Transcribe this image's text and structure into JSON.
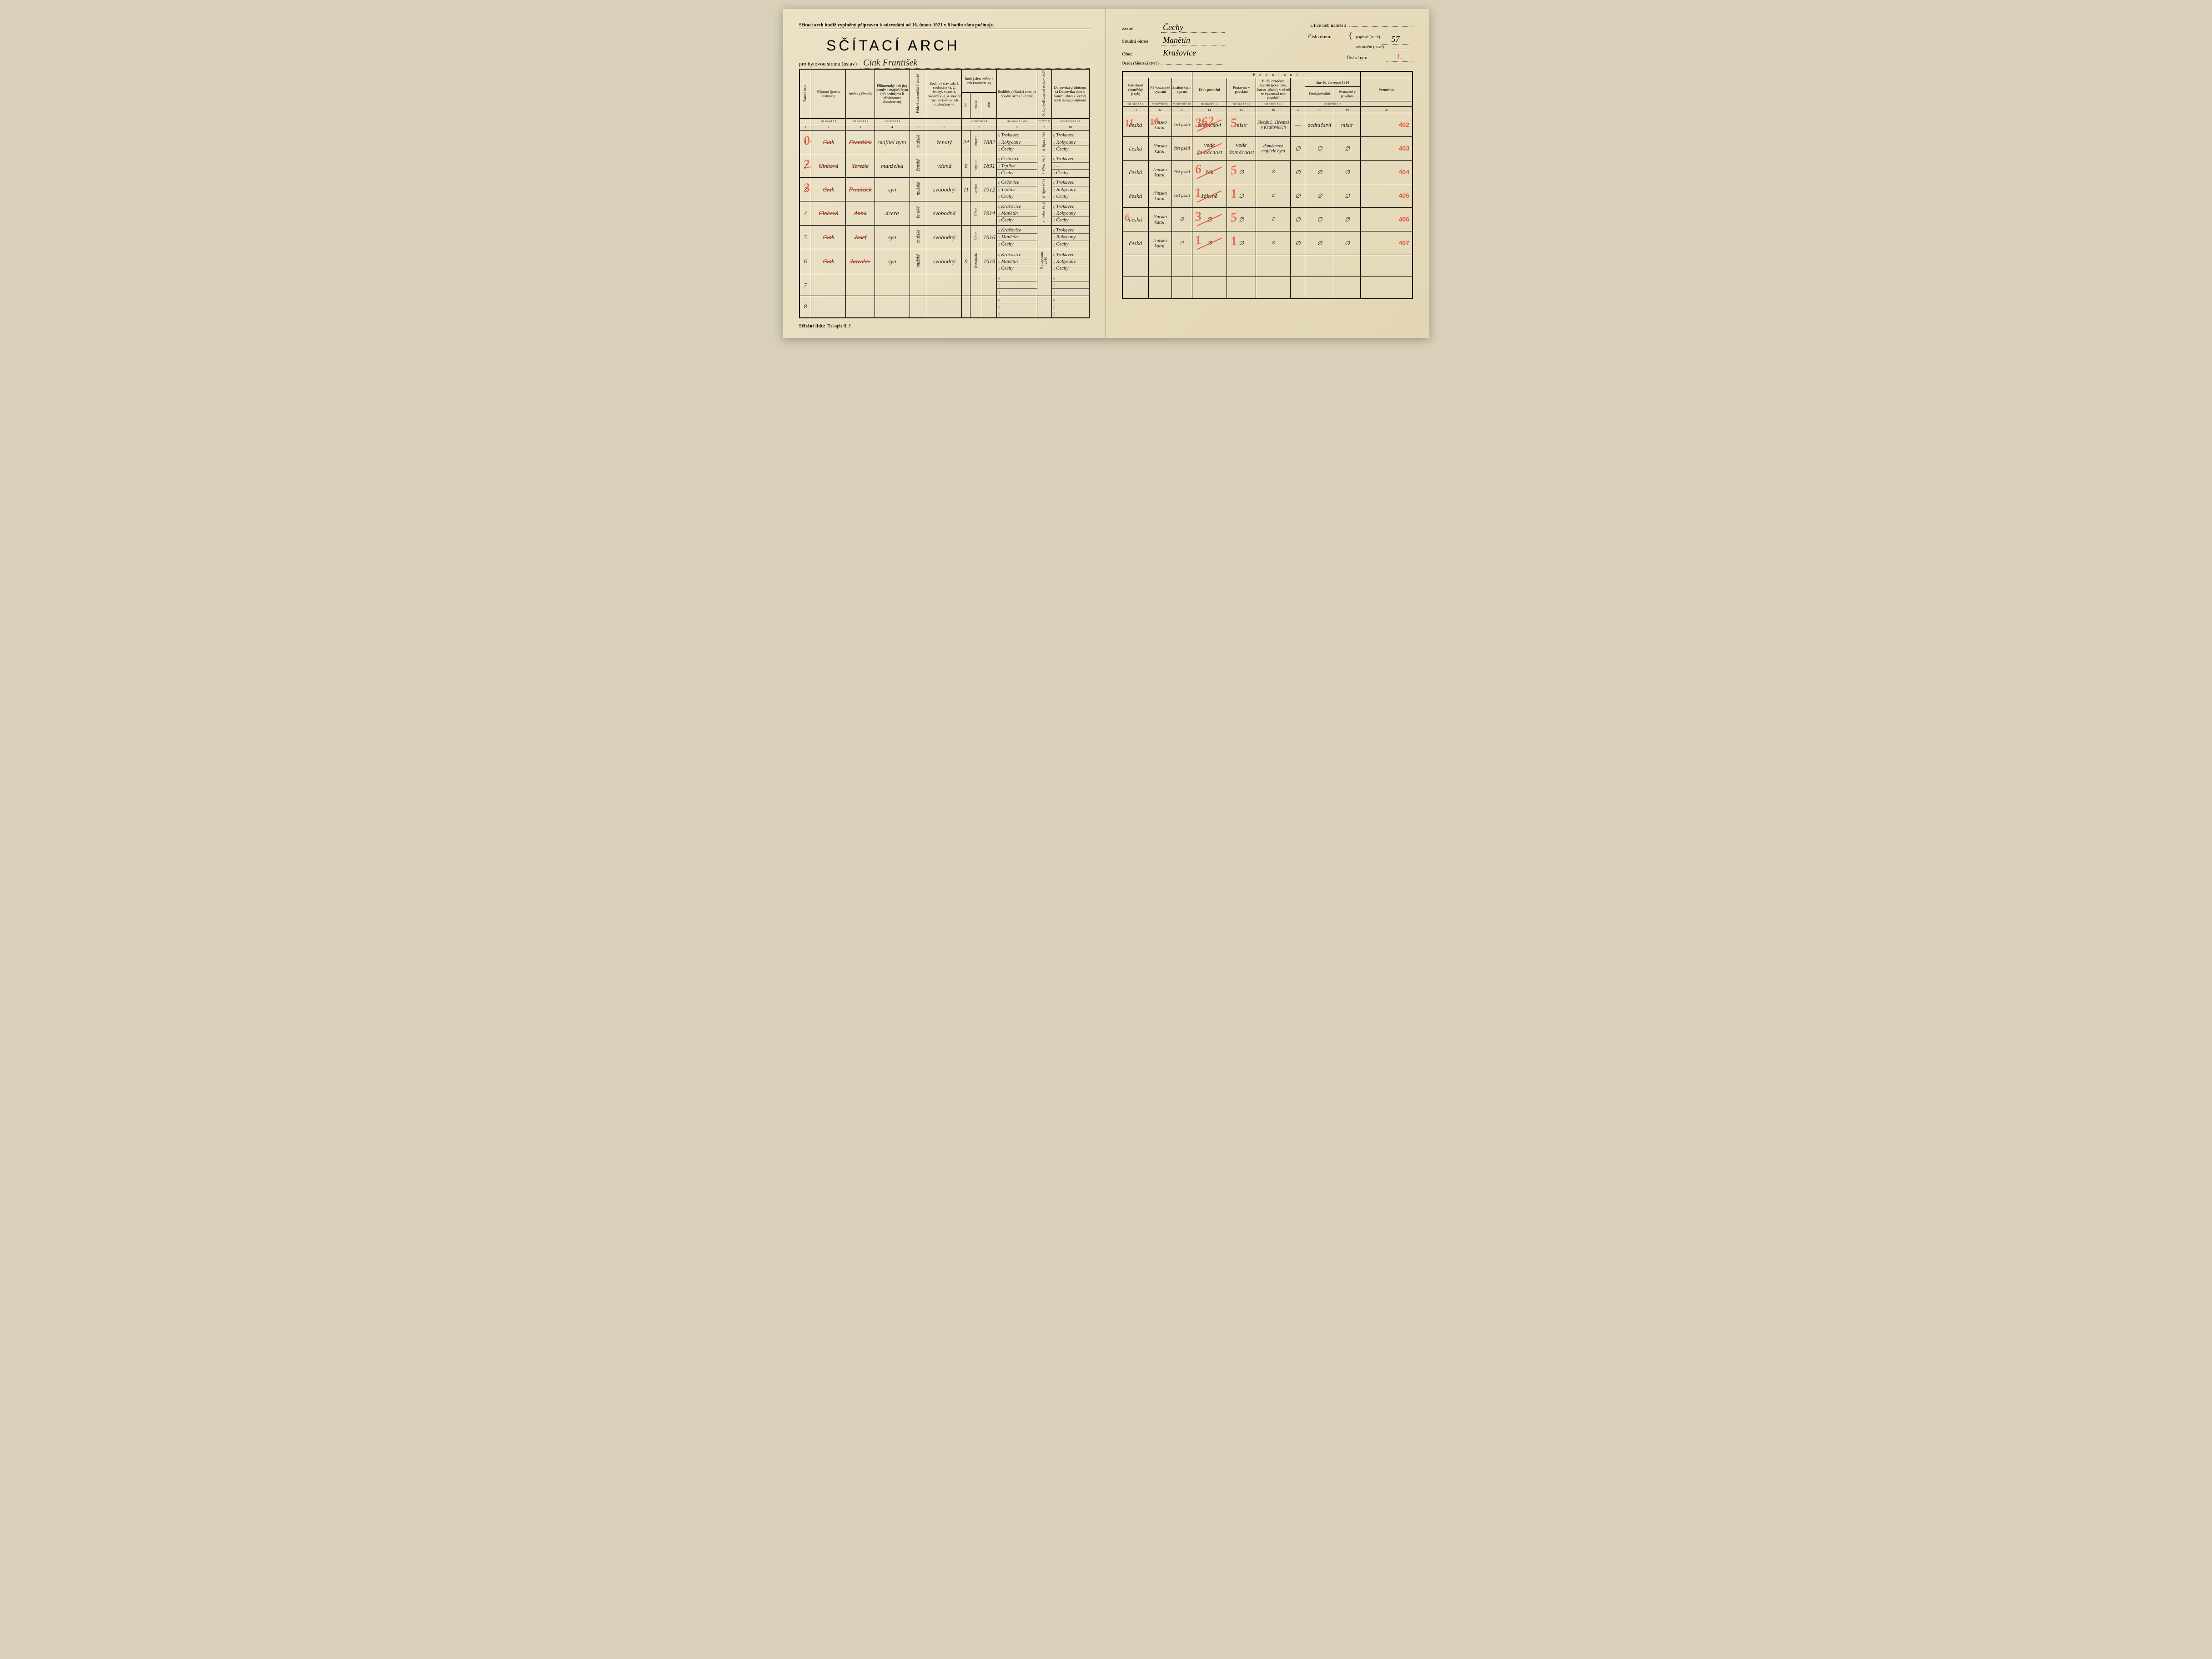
{
  "left": {
    "top_note": "Sčítací arch budiž vyplněný připraven k odevzdání od 16. února 1921 v 8 hodin ráno počínaje.",
    "title": "SČÍTACÍ ARCH",
    "subtitle_printed": "pro bytovou stranu (ústav)",
    "subtitle_written": "Cink František",
    "footer": "Sčítání lidu:",
    "footer2": "Tiskopis II. č.",
    "headers": {
      "c1": "Řadové číslo",
      "c2": "Příjmení (jméno rodinné)",
      "c3": "Jméno (křestní)",
      "c4": "Příbuzenský neb jiný poměr k majiteli bytu (při podnájmu k přednostovi domácnosti)",
      "c5": "Pohlaví, zda mužské či ženské",
      "c6": "Rodinný stav, zda 1. svobodný -á, 2. ženatý, vdaná 3. ovdovělý -á, 4. soudně roz- vedený -á neb rozloučený -á",
      "c7": "Rodný den, měsíc a rok (narozen -a)",
      "c7a": "dne",
      "c7b": "měsíce",
      "c7c": "roku",
      "c8": "Rodiště: a) Rodná obec b) Soudní okres c) Země",
      "c9": "Od kdy bydlí zapsaná osoba v obci?",
      "c10": "Domovská příslušnost (a Domovská obec b Soudní okres c Země) aneb státní příslušnost",
      "guide": "viz návod §"
    },
    "rows": [
      {
        "n": "1",
        "prijmeni": "Cink",
        "jmeno": "František",
        "pomer": "majitel bytu",
        "pohl": "mužské",
        "stav": "ženatý",
        "den": "24",
        "mes": "února",
        "rok": "1882",
        "rod_a": "Trokavec",
        "rod_b": "Rokycany",
        "rod_c": "Čechy",
        "odkdy": "6. října 1913",
        "dom_a": "Trokavec",
        "dom_b": "Rokycany",
        "dom_c": "Čechy",
        "red": "04"
      },
      {
        "n": "2",
        "prijmeni": "Cinková",
        "jmeno": "Terezie",
        "pomer": "manželka",
        "pohl": "ženské",
        "stav": "vdaná",
        "den": "6",
        "mes": "srpna",
        "rok": "1891",
        "rod_a": "Čečovice",
        "rod_b": "Teplice",
        "rod_c": "Čechy",
        "odkdy": "6. října 1913",
        "dom_a": "Trokavec",
        "dom_b": "—",
        "dom_c": "Čechy",
        "red": "22"
      },
      {
        "n": "3",
        "prijmeni": "Cink",
        "jmeno": "František",
        "pomer": "syn",
        "pohl": "mužské",
        "stav": "svobodný",
        "den": "11",
        "mes": "srpna",
        "rok": "1912",
        "rod_a": "Čečovice",
        "rod_b": "Teplice",
        "rod_c": "Čechy",
        "odkdy": "6. října 1913",
        "dom_a": "Trokavec",
        "dom_b": "Rokycany",
        "dom_c": "Čechy",
        "red": "31"
      },
      {
        "n": "4",
        "prijmeni": "Cinková",
        "jmeno": "Anna",
        "pomer": "dcera",
        "pohl": "ženské",
        "stav": "svobodná",
        "den": "",
        "mes": "října",
        "rok": "1914",
        "rod_a": "Krašovice",
        "rod_b": "Manětín",
        "rod_c": "Čechy",
        "odkdy": "1. ledna 1914",
        "dom_a": "Trokavec",
        "dom_b": "Rokycany",
        "dom_c": "Čechy",
        "red": ""
      },
      {
        "n": "5",
        "prijmeni": "Cink",
        "jmeno": "Josef",
        "pomer": "syn",
        "pohl": "mužské",
        "stav": "svobodný",
        "den": "",
        "mes": "října",
        "rok": "1916",
        "rod_a": "Krašovice",
        "rod_b": "Manětín",
        "rod_c": "Čechy",
        "odkdy": "",
        "dom_a": "Trokavec",
        "dom_b": "Rokycany",
        "dom_c": "Čechy",
        "red": ""
      },
      {
        "n": "6",
        "prijmeni": "Cink",
        "jmeno": "Jaroslav",
        "pomer": "syn",
        "pohl": "mužské",
        "stav": "svobodný",
        "den": "9",
        "mes": "listopadu",
        "rok": "1919",
        "rod_a": "Krašovice",
        "rod_b": "Manětín",
        "rod_c": "Čechy",
        "odkdy": "9. listopadu 1919",
        "dom_a": "Trokavec",
        "dom_b": "Rokycany",
        "dom_c": "Čechy",
        "red": ""
      }
    ]
  },
  "right": {
    "fields": {
      "zeme_l": "Země",
      "zeme_v": "Čechy",
      "okres_l": "Soudní okres",
      "okres_v": "Manětín",
      "obec_l": "Obec",
      "obec_v": "Krašovice",
      "osada_l": "Osada (Městská čtvrť)",
      "osada_v": "",
      "ulice_l": "Ulice neb náměstí",
      "ulice_v": "",
      "cislo_domu_l": "Číslo domu",
      "popisne_l": "popisné (staré)",
      "popisne_v": "57",
      "orient_l": "orientační (nové)",
      "orient_v": "",
      "cislo_bytu_l": "Číslo bytu",
      "cislo_bytu_v": "1."
    },
    "headers": {
      "povolani": "P o v o l á n í",
      "c11": "Národnost (mateřský jazyk)",
      "c12": "Ná- boženské vyznání",
      "c13": "Znalost čtení a psaní",
      "c14": "Druh povolání",
      "c15": "Postavení v povolání",
      "c16": "Bližší označení závodu (pod- niku, ústavu, úřadu), v němž se vykonává toto povolání",
      "c17_18_top": "dne 16. července 1914",
      "c17": "Druh povolání",
      "c18": "Postavení v povolání",
      "c20": "Poznámka"
    },
    "rows": [
      {
        "nar": "česká",
        "nab": "římsko katol.",
        "zn": "číst psáti",
        "druh": "zedničství",
        "post": "mistr",
        "zavod": "Slezák L. Hřemeš v Krašovicích",
        "d1914": "—",
        "p1914": "zedničství",
        "p2": "mistr",
        "stamp": "402",
        "red1": "362",
        "red2": "5",
        "red3": "11",
        "red4": "10"
      },
      {
        "nar": "česká",
        "nab": "římsko katol.",
        "zn": "číst psáti",
        "druh": "vede domácnost",
        "post": "vede domácnost",
        "zavod": "domácnost majitele bytu",
        "d1914": "∅",
        "p1914": "∅",
        "p2": "∅",
        "stamp": "403"
      },
      {
        "nar": "česká",
        "nab": "římsko katol.",
        "zn": "číst psáti",
        "druh": "žák",
        "post": "∅",
        "zavod": "∅",
        "d1914": "∅",
        "p1914": "∅",
        "p2": "∅",
        "stamp": "404",
        "red1": "6",
        "red2": "5"
      },
      {
        "nar": "česká",
        "nab": "římsko katol.",
        "zn": "číst psáti",
        "druh": "žákyně",
        "post": "∅",
        "zavod": "∅",
        "d1914": "∅",
        "p1914": "∅",
        "p2": "∅",
        "stamp": "405",
        "red1": "1",
        "red2": "1"
      },
      {
        "nar": "česká",
        "nab": "římsko katol.",
        "zn": "∅",
        "druh": "∅",
        "post": "∅",
        "zavod": "∅",
        "d1914": "∅",
        "p1914": "∅",
        "p2": "∅",
        "stamp": "406",
        "red1": "3",
        "red2": "5",
        "red3": "6"
      },
      {
        "nar": "česká",
        "nab": "římsko katol.",
        "zn": "∅",
        "druh": "∅",
        "post": "∅",
        "zavod": "∅",
        "d1914": "∅",
        "p1914": "∅",
        "p2": "∅",
        "stamp": "407",
        "red1": "1",
        "red2": "1"
      }
    ]
  }
}
